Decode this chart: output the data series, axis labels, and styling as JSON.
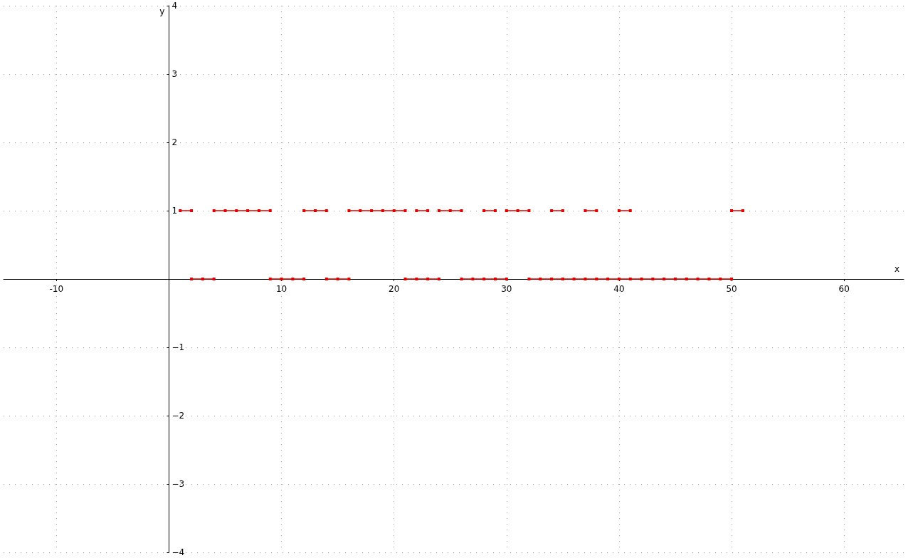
{
  "chart_data": {
    "type": "line",
    "xlabel": "x",
    "ylabel": "y",
    "xlim": [
      -14.7,
      65.3
    ],
    "ylim": [
      -4,
      4
    ],
    "xticks": [
      -10,
      10,
      20,
      30,
      40,
      50,
      60
    ],
    "yticks": [
      -4,
      -3,
      -2,
      -1,
      1,
      2,
      3,
      4
    ],
    "grid": true,
    "marker": "square",
    "line_style": "solid",
    "series": [
      {
        "color": "#e00000",
        "x": [
          1,
          2,
          2.5,
          4,
          5,
          6,
          7,
          8,
          9,
          10.5,
          12,
          13,
          14,
          15,
          16,
          17,
          18,
          19,
          20,
          21,
          21.5,
          22,
          23,
          23.5,
          24,
          25,
          26,
          27,
          28,
          29,
          29.5,
          30,
          31,
          32,
          33,
          34,
          35,
          36,
          37,
          38,
          39,
          40,
          41,
          45,
          50,
          51
        ],
        "values": [
          1,
          1,
          null,
          1,
          1,
          1,
          1,
          1,
          1,
          null,
          1,
          1,
          1,
          null,
          1,
          1,
          1,
          1,
          1,
          1,
          null,
          1,
          1,
          null,
          1,
          1,
          1,
          null,
          1,
          1,
          null,
          1,
          1,
          1,
          null,
          1,
          1,
          null,
          1,
          1,
          null,
          1,
          1,
          null,
          1,
          1
        ]
      },
      {
        "color": "#e00000",
        "x": [
          2,
          3,
          4,
          6,
          9,
          10,
          11,
          12,
          13,
          14,
          15,
          16,
          18,
          21,
          22,
          23,
          24,
          25,
          26,
          27,
          28,
          29,
          30,
          31,
          32,
          33,
          34,
          35,
          36,
          37,
          38,
          39,
          40,
          41,
          42,
          43,
          44,
          45,
          46,
          47,
          48,
          49,
          50
        ],
        "values": [
          0,
          0,
          0,
          null,
          0,
          0,
          0,
          0,
          null,
          0,
          0,
          0,
          null,
          0,
          0,
          0,
          0,
          null,
          0,
          0,
          0,
          0,
          0,
          null,
          0,
          0,
          0,
          0,
          0,
          0,
          0,
          0,
          0,
          0,
          0,
          0,
          0,
          0,
          0,
          0,
          0,
          0,
          0
        ]
      }
    ]
  }
}
